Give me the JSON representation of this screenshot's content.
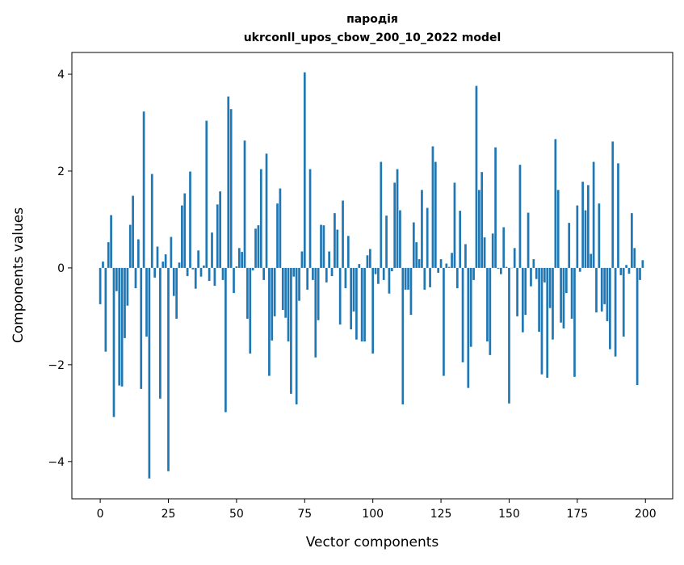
{
  "chart_data": {
    "type": "bar",
    "title": "пародія",
    "subtitle": "ukrconll_upos_cbow_200_10_2022 model",
    "xlabel": "Vector components",
    "ylabel": "Components values",
    "xlim": [
      -10.4,
      210
    ],
    "ylim": [
      -4.77,
      4.45
    ],
    "xticks": [
      0,
      25,
      50,
      75,
      100,
      125,
      150,
      175,
      200
    ],
    "yticks": [
      -4,
      -2,
      0,
      2,
      4
    ],
    "xtick_labels": [
      "0",
      "25",
      "50",
      "75",
      "100",
      "125",
      "150",
      "175",
      "200"
    ],
    "ytick_labels": [
      "−4",
      "−2",
      "0",
      "2",
      "4"
    ],
    "grid": false,
    "bar_color": "#1f77b4",
    "values": [
      -0.75,
      0.13,
      -1.73,
      0.53,
      1.09,
      -3.08,
      -0.48,
      -2.43,
      -2.45,
      -1.45,
      -0.78,
      0.89,
      1.49,
      -0.42,
      0.59,
      -2.5,
      3.23,
      -1.42,
      -4.35,
      1.94,
      -0.2,
      0.44,
      -2.7,
      0.13,
      0.28,
      -4.2,
      0.64,
      -0.58,
      -1.05,
      0.11,
      1.29,
      1.54,
      -0.17,
      1.99,
      -0.03,
      -0.43,
      0.36,
      -0.18,
      0.05,
      3.04,
      -0.27,
      0.73,
      -0.37,
      1.31,
      1.58,
      -0.25,
      -2.98,
      3.54,
      3.28,
      -0.52,
      0.03,
      0.41,
      0.33,
      2.63,
      -1.05,
      -1.77,
      -0.05,
      0.81,
      0.88,
      2.04,
      -0.25,
      2.36,
      -2.23,
      -1.5,
      -1.0,
      1.33,
      1.64,
      -0.87,
      -1.03,
      -1.52,
      -2.6,
      -0.18,
      -2.82,
      -0.68,
      0.34,
      4.04,
      -0.45,
      2.04,
      -0.25,
      -1.85,
      -1.08,
      0.89,
      0.88,
      -0.3,
      0.34,
      -0.17,
      1.13,
      0.79,
      -1.17,
      1.39,
      -0.42,
      0.66,
      -1.27,
      -0.9,
      -1.48,
      0.08,
      -1.52,
      -1.52,
      0.26,
      0.39,
      -1.77,
      -0.13,
      -0.33,
      2.19,
      -0.25,
      1.08,
      -0.53,
      -0.07,
      1.76,
      2.04,
      1.19,
      -2.82,
      -0.45,
      -0.45,
      -0.97,
      0.94,
      0.53,
      0.18,
      1.61,
      -0.45,
      1.24,
      -0.4,
      2.51,
      2.19,
      -0.1,
      0.18,
      -2.23,
      0.09,
      0.02,
      0.31,
      1.76,
      -0.42,
      1.18,
      -1.95,
      0.49,
      -2.48,
      -1.63,
      -0.25,
      3.76,
      1.61,
      1.98,
      0.63,
      -1.52,
      -1.8,
      0.71,
      2.49,
      -0.02,
      -0.13,
      0.84,
      0.02,
      -2.8,
      0.0,
      0.41,
      -1.0,
      2.13,
      -1.33,
      -0.97,
      1.14,
      -0.38,
      0.18,
      -0.23,
      -1.32,
      -2.2,
      -0.3,
      -2.27,
      -0.83,
      -1.48,
      2.66,
      1.61,
      -1.13,
      -1.25,
      -0.52,
      0.93,
      -1.05,
      -2.25,
      1.29,
      -0.08,
      1.78,
      1.19,
      1.71,
      0.29,
      2.19,
      -0.92,
      1.33,
      -0.9,
      -0.75,
      -1.1,
      -1.68,
      2.61,
      -1.83,
      2.16,
      -0.15,
      -1.42,
      0.06,
      -0.12,
      1.13,
      0.41,
      -2.42,
      -0.25,
      0.16
    ]
  }
}
